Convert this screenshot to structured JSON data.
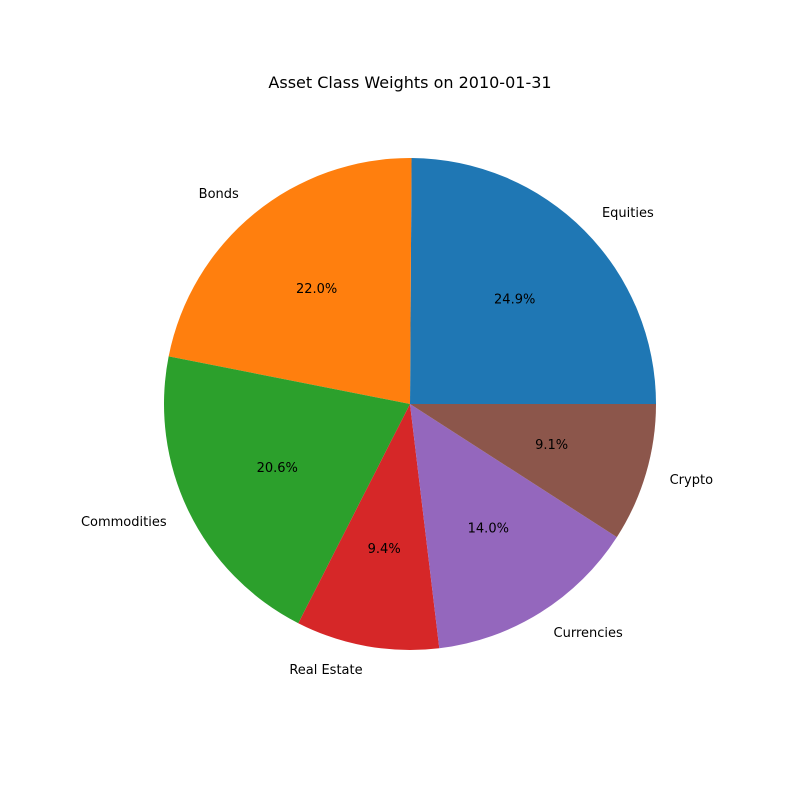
{
  "chart_data": {
    "type": "pie",
    "title": "Asset Class Weights on 2010-01-31",
    "labels": [
      "Equities",
      "Bonds",
      "Commodities",
      "Real Estate",
      "Currencies",
      "Crypto"
    ],
    "values": [
      24.9,
      22.0,
      20.6,
      9.4,
      14.0,
      9.1
    ],
    "percent_labels": [
      "24.9%",
      "22.0%",
      "20.6%",
      "9.4%",
      "14.0%",
      "9.1%"
    ],
    "colors": [
      "#1f77b4",
      "#ff7f0e",
      "#2ca02c",
      "#d62728",
      "#9467bd",
      "#8c564b"
    ],
    "start_angle_deg": 0,
    "direction": "counterclockwise",
    "legend": "none"
  }
}
